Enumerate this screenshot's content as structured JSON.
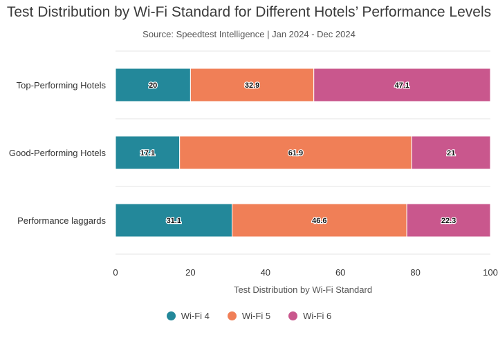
{
  "chart_data": {
    "type": "bar",
    "orientation": "horizontal",
    "stacked": true,
    "title": "Test Distribution by Wi-Fi Standard for Different Hotels’ Performance Levels",
    "subtitle": "Source: Speedtest Intelligence | Jan 2024 - Dec 2024",
    "xlabel": "Test Distribution by Wi-Fi Standard",
    "ylabel": "",
    "xlim": [
      0,
      100
    ],
    "xticks": [
      0,
      20,
      40,
      60,
      80,
      100
    ],
    "categories": [
      "Top-Performing Hotels",
      "Good-Performing Hotels",
      "Performance laggards"
    ],
    "series": [
      {
        "name": "Wi-Fi 4",
        "color": "#23889a",
        "values": [
          20,
          17.1,
          31.1
        ]
      },
      {
        "name": "Wi-Fi 5",
        "color": "#f07f57",
        "values": [
          32.9,
          61.9,
          46.6
        ]
      },
      {
        "name": "Wi-Fi 6",
        "color": "#c9578d",
        "values": [
          47.1,
          21,
          22.3
        ]
      }
    ],
    "grid": true,
    "legend_position": "bottom"
  }
}
